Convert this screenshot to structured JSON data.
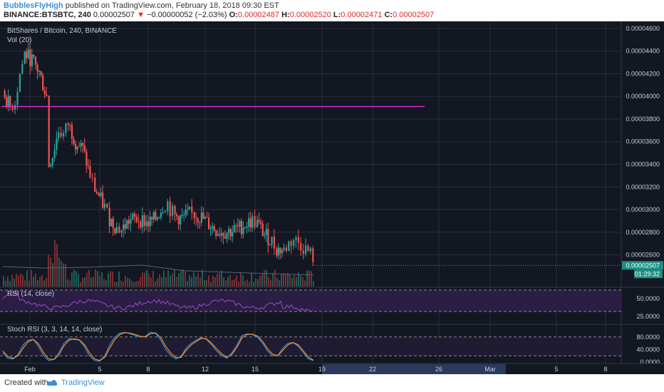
{
  "header": {
    "author": "BubblesFlyHigh",
    "published": " published on TradingView.com, February 18, 2018 09:30 EST",
    "symbol": "BINANCE:BTSBTC, 240",
    "price": "0.00002507",
    "change": "−0.00000052 (−2.03%)",
    "open_label": "O:",
    "open": "0.00002487",
    "high_label": "H:",
    "high": "0.00002520",
    "low_label": "L:",
    "low": "0.00002471",
    "close_label": "C:",
    "close": "0.00002507"
  },
  "chart_title": "BitShares / Bitcoin, 240, BINANCE",
  "vol_label": "Vol (20)",
  "rsi_label": "RSI (14, close)",
  "stoch_label": "Stoch RSI (3, 3, 14, 14, close)",
  "last_price_badge": "0.00002507",
  "countdown_badge": "01:29:32",
  "horizontal_line_level": 3.91e-05,
  "colors": {
    "background": "#131722",
    "up": "#26a69a",
    "down": "#ef5350",
    "hline": "#e535d8",
    "rsi": "#a349c8",
    "stoch_k": "#2d8fe0",
    "stoch_d": "#ff8c1a",
    "axis_text": "#c9ccd6"
  },
  "chart_data": [
    {
      "type": "candlestick",
      "title": "BitShares / Bitcoin, 240, BINANCE",
      "ylim": [
        2.32e-05,
        4.65e-05
      ],
      "y_ticks": [
        "0.00004600",
        "0.00004400",
        "0.00004200",
        "0.00004000",
        "0.00003800",
        "0.00003600",
        "0.00003400",
        "0.00003200",
        "0.00003000",
        "0.00002800",
        "0.00002600"
      ],
      "y_tick_values": [
        4.6e-05,
        4.4e-05,
        4.2e-05,
        4e-05,
        3.8e-05,
        3.6e-05,
        3.4e-05,
        3.2e-05,
        3e-05,
        2.8e-05,
        2.6e-05
      ],
      "x_ticks": [
        "Feb",
        "5",
        "8",
        "12",
        "15",
        "19",
        "22",
        "26",
        "Mar",
        "5",
        "8"
      ],
      "close_path": [
        [
          0,
          4.05e-05
        ],
        [
          6,
          3.9e-05
        ],
        [
          10,
          3.96e-05
        ],
        [
          14,
          4.2e-05
        ],
        [
          18,
          4.38e-05
        ],
        [
          24,
          4.32e-05
        ],
        [
          30,
          4.21e-05
        ],
        [
          36,
          4e-05
        ],
        [
          38,
          3.4e-05
        ],
        [
          41,
          3.48e-05
        ],
        [
          46,
          3.7e-05
        ],
        [
          50,
          3.66e-05
        ],
        [
          54,
          3.76e-05
        ],
        [
          60,
          3.6e-05
        ],
        [
          66,
          3.53e-05
        ],
        [
          72,
          3.3e-05
        ],
        [
          76,
          3.18e-05
        ],
        [
          84,
          3.02e-05
        ],
        [
          88,
          2.92e-05
        ],
        [
          94,
          2.84e-05
        ],
        [
          98,
          2.82e-05
        ],
        [
          104,
          2.9e-05
        ],
        [
          112,
          2.92e-05
        ],
        [
          120,
          2.88e-05
        ],
        [
          126,
          2.92e-05
        ],
        [
          132,
          3.03e-05
        ],
        [
          136,
          3.06e-05
        ],
        [
          138,
          3e-05
        ],
        [
          142,
          2.94e-05
        ],
        [
          148,
          2.92e-05
        ],
        [
          154,
          2.96e-05
        ],
        [
          158,
          2.96e-05
        ],
        [
          164,
          2.93e-05
        ],
        [
          170,
          2.87e-05
        ],
        [
          176,
          2.82e-05
        ],
        [
          182,
          2.8e-05
        ],
        [
          188,
          2.81e-05
        ],
        [
          194,
          2.83e-05
        ],
        [
          200,
          2.87e-05
        ],
        [
          206,
          2.9e-05
        ],
        [
          210,
          2.88e-05
        ],
        [
          216,
          2.78e-05
        ],
        [
          222,
          2.72e-05
        ],
        [
          226,
          2.65e-05
        ],
        [
          232,
          2.64e-05
        ],
        [
          236,
          2.7e-05
        ],
        [
          240,
          2.74e-05
        ],
        [
          244,
          2.71e-05
        ],
        [
          248,
          2.67e-05
        ],
        [
          252,
          2.63e-05
        ],
        [
          256,
          2.58e-05
        ],
        [
          258,
          2.5e-05
        ],
        [
          262,
          2.52e-05
        ]
      ],
      "horizontal_line": 3.91e-05
    },
    {
      "type": "bar",
      "title": "Vol (20)"
    },
    {
      "type": "line",
      "title": "RSI (14, close)",
      "ylim": [
        15,
        65
      ],
      "y_ticks": [
        "50.0000",
        "25.0000"
      ],
      "y_tick_values": [
        50,
        25
      ],
      "band": [
        30,
        70
      ]
    },
    {
      "type": "line",
      "title": "Stoch RSI (3, 3, 14, 14, close)",
      "ylim": [
        0,
        100
      ],
      "y_ticks": [
        "80.0000",
        "40.0000",
        "0.0000"
      ],
      "y_tick_values": [
        80,
        40,
        0
      ],
      "band": [
        20,
        80
      ],
      "series": [
        {
          "name": "K",
          "values": [
            30,
            12,
            10,
            25,
            55,
            70,
            72,
            50,
            20,
            5,
            8,
            30,
            60,
            75,
            72,
            70,
            50,
            20,
            5,
            3,
            20,
            55,
            80,
            92,
            95,
            90,
            85,
            80,
            82,
            95,
            92,
            70,
            40,
            20,
            10,
            18,
            45,
            60,
            70,
            78,
            72,
            55,
            35,
            20,
            12,
            30,
            55,
            85,
            90,
            88,
            80,
            60,
            35,
            20,
            22,
            45,
            60,
            62,
            50,
            30,
            10,
            5
          ]
        },
        {
          "name": "D",
          "values": [
            35,
            18,
            12,
            20,
            45,
            65,
            72,
            58,
            30,
            10,
            8,
            22,
            52,
            70,
            74,
            71,
            56,
            30,
            10,
            5,
            15,
            45,
            72,
            88,
            94,
            92,
            88,
            82,
            80,
            90,
            93,
            78,
            50,
            28,
            14,
            15,
            38,
            55,
            66,
            76,
            74,
            60,
            42,
            26,
            15,
            25,
            48,
            78,
            88,
            89,
            83,
            66,
            42,
            25,
            20,
            38,
            55,
            62,
            55,
            36,
            16,
            6
          ]
        }
      ]
    }
  ]
}
